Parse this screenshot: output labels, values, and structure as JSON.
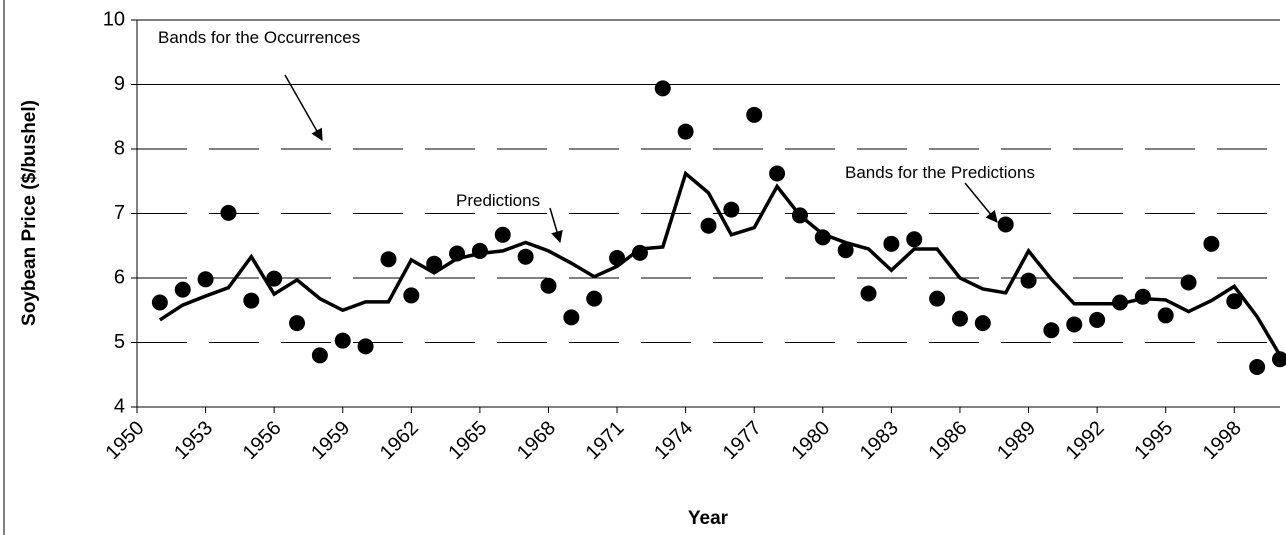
{
  "chart_data": {
    "type": "line-scatter",
    "x_label": "Year",
    "y_label": "Soybean Price ($/bushel)",
    "xlim": [
      1950,
      2000
    ],
    "xticks": [
      1950,
      1953,
      1956,
      1959,
      1962,
      1965,
      1968,
      1971,
      1974,
      1977,
      1980,
      1983,
      1986,
      1989,
      1992,
      1995,
      1998
    ],
    "ylim": [
      4,
      10
    ],
    "yticks": [
      4,
      5,
      6,
      7,
      8,
      9,
      10
    ],
    "x": [
      1951,
      1952,
      1953,
      1954,
      1955,
      1956,
      1957,
      1958,
      1959,
      1960,
      1961,
      1962,
      1963,
      1964,
      1965,
      1966,
      1967,
      1968,
      1969,
      1970,
      1971,
      1972,
      1973,
      1974,
      1975,
      1976,
      1977,
      1978,
      1979,
      1980,
      1981,
      1982,
      1983,
      1984,
      1985,
      1986,
      1987,
      1988,
      1989,
      1990,
      1991,
      1992,
      1993,
      1994,
      1995,
      1996,
      1997,
      1998,
      1999,
      2000
    ],
    "occurrences": {
      "color": "#000000",
      "values": [
        5.62,
        5.82,
        5.98,
        7.01,
        5.65,
        5.99,
        5.3,
        4.8,
        5.03,
        4.94,
        6.29,
        5.73,
        6.22,
        6.38,
        6.42,
        6.67,
        6.33,
        5.88,
        5.39,
        5.68,
        6.31,
        6.39,
        8.94,
        8.27,
        6.81,
        7.06,
        8.53,
        7.62,
        6.97,
        6.63,
        6.43,
        5.76,
        6.53,
        6.6,
        5.68,
        5.37,
        5.3,
        6.83,
        5.96,
        5.19,
        5.28,
        5.35,
        5.62,
        5.71,
        5.42,
        5.93,
        6.53,
        5.64,
        4.62,
        4.74
      ]
    },
    "predictions": {
      "color": "#000000",
      "values": [
        5.35,
        5.58,
        5.72,
        5.85,
        6.33,
        5.75,
        5.97,
        5.68,
        5.5,
        5.63,
        5.63,
        6.28,
        6.08,
        6.3,
        6.38,
        6.42,
        6.55,
        6.42,
        6.23,
        6.02,
        6.18,
        6.45,
        6.48,
        7.62,
        7.32,
        6.67,
        6.78,
        7.42,
        6.97,
        6.68,
        6.55,
        6.45,
        6.12,
        6.45,
        6.45,
        6.0,
        5.83,
        5.77,
        6.42,
        5.98,
        5.6,
        5.6,
        5.6,
        5.68,
        5.66,
        5.48,
        5.65,
        5.87,
        5.4,
        4.8
      ]
    },
    "occurrence_band": [
      5,
      8
    ],
    "prediction_band": [
      6,
      7
    ],
    "annotations": [
      "Bands for the Occurrences",
      "Predictions",
      "Bands for the Predictions"
    ]
  }
}
